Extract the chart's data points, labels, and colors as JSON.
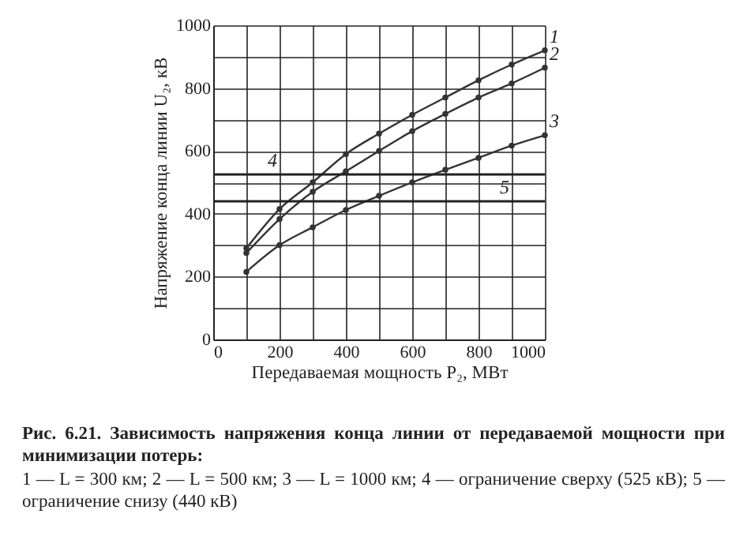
{
  "chart_data": {
    "type": "line",
    "xlabel": "Передаваемая мощность P₂, МВт",
    "ylabel": "Напряжение конца линии U₂, кВ",
    "x": [
      100,
      200,
      300,
      400,
      500,
      600,
      700,
      800,
      900,
      1000
    ],
    "series": [
      {
        "color": "#333333",
        "values": [
          290,
          415,
          500,
          590,
          655,
          715,
          770,
          825,
          875,
          920
        ]
      },
      {
        "color": "#333333",
        "values": [
          275,
          383,
          470,
          535,
          600,
          663,
          718,
          770,
          815,
          865
        ]
      },
      {
        "color": "#333333",
        "values": [
          215,
          300,
          357,
          412,
          457,
          500,
          540,
          578,
          617,
          650
        ]
      }
    ],
    "ref_lines": [
      {
        "axis": "y",
        "value": 525,
        "color": "#222222"
      },
      {
        "axis": "y",
        "value": 440,
        "color": "#222222"
      }
    ],
    "xlim": [
      0,
      1000
    ],
    "ylim": [
      0,
      1000
    ],
    "xticks": [
      0,
      {
        "value": 100,
        "label": null
      },
      200,
      {
        "value": 300,
        "label": null
      },
      400,
      {
        "value": 500,
        "label": null
      },
      600,
      {
        "value": 700,
        "label": null
      },
      800,
      {
        "value": 900,
        "label": null
      },
      1000
    ],
    "yticks": [
      0,
      {
        "value": 100,
        "label": null
      },
      200,
      {
        "value": 300,
        "label": null
      },
      400,
      {
        "value": 500,
        "label": null
      },
      600,
      {
        "value": 700,
        "label": null
      },
      800,
      {
        "value": 900,
        "label": null
      },
      1000
    ],
    "grid": true,
    "marker": "circle",
    "line_style": "solid",
    "annotations": [
      {
        "text": "1",
        "x": 1000,
        "y": 920
      },
      {
        "text": "2",
        "x": 1000,
        "y": 865
      },
      {
        "text": "3",
        "x": 1000,
        "y": 650
      },
      {
        "text": "4",
        "x": 150,
        "y": 525
      },
      {
        "text": "5",
        "x": 850,
        "y": 440
      },
      "Рис. 6.21. Зависимость напряжения конца линии от передаваемой мощности при минимизации потерь:",
      "1 — L = 300 км; 2 — L = 500 км; 3 — L = 1000 км; 4 — ограничение сверху (525 кВ); 5 — ограничение снизу (440 кВ)"
    ]
  }
}
